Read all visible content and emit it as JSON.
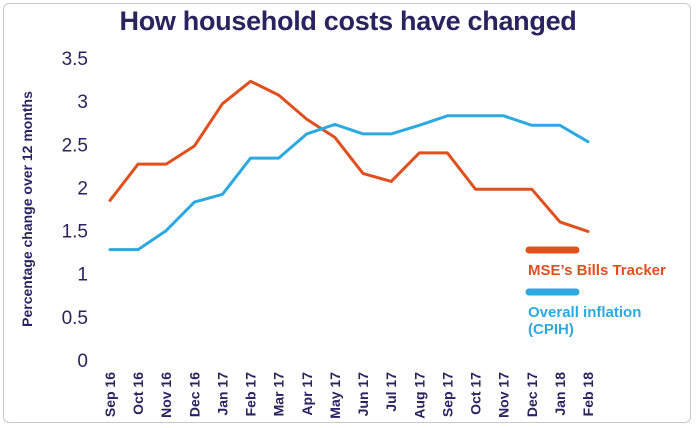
{
  "chart_data": {
    "type": "line",
    "title": "How household costs have changed",
    "xlabel": "",
    "ylabel": "Percentage change over 12 months",
    "ylim": [
      0,
      3.5
    ],
    "yticks": [
      "0",
      "0.5",
      "1",
      "1.5",
      "2",
      "2.5",
      "3",
      "3.5"
    ],
    "ytick_values": [
      0,
      0.5,
      1,
      1.5,
      2,
      2.5,
      3,
      3.5
    ],
    "grid": false,
    "legend_position": "right",
    "categories": [
      "Sep 16",
      "Oct 16",
      "Nov 16",
      "Dec 16",
      "Jan 17",
      "Feb 17",
      "Mar 17",
      "Apr 17",
      "May 17",
      "Jun 17",
      "Jul 17",
      "Aug 17",
      "Sep 17",
      "Oct 17",
      "Nov 17",
      "Dec 17",
      "Jan 18",
      "Feb 18"
    ],
    "series": [
      {
        "name": "MSE's Bills Tracker",
        "color": "#e0501e",
        "values": [
          1.85,
          2.27,
          2.27,
          2.48,
          2.97,
          3.23,
          3.07,
          2.79,
          2.58,
          2.16,
          2.07,
          2.4,
          2.4,
          1.98,
          1.98,
          1.98,
          1.6,
          1.49
        ]
      },
      {
        "name": "Overall inflation (CPIH)",
        "color": "#2da9e1",
        "values": [
          1.28,
          1.28,
          1.5,
          1.83,
          1.92,
          2.34,
          2.34,
          2.62,
          2.73,
          2.62,
          2.62,
          2.72,
          2.83,
          2.83,
          2.83,
          2.72,
          2.72,
          2.53
        ]
      }
    ],
    "legend": [
      {
        "lines": [
          "MSE’s Bills Tracker"
        ],
        "color": "#e0501e"
      },
      {
        "lines": [
          "Overall inflation",
          "(CPIH)"
        ],
        "color": "#2da9e1"
      }
    ]
  }
}
